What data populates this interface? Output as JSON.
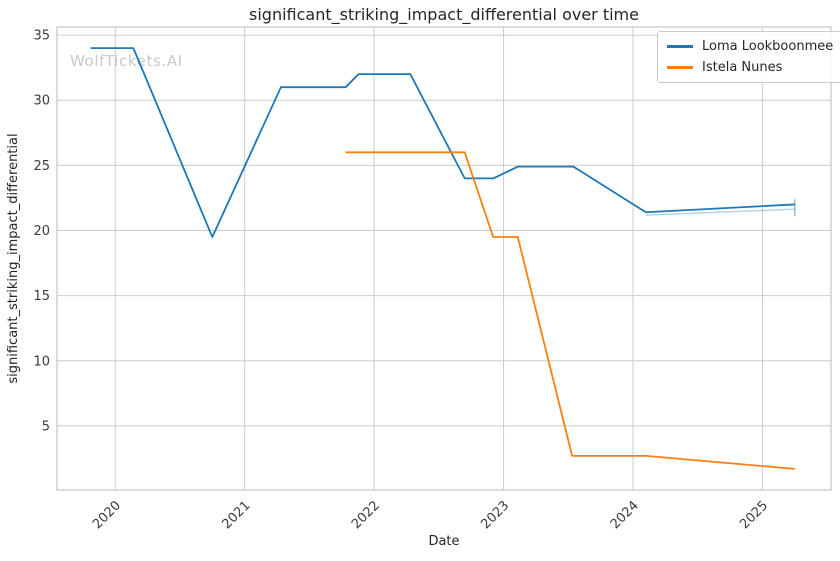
{
  "watermark": "WolfTickets.AI",
  "chart_data": {
    "type": "line",
    "title": "significant_striking_impact_differential over time",
    "xlabel": "Date",
    "ylabel": "significant_striking_impact_differential",
    "xlim": [
      2019.55,
      2025.53
    ],
    "ylim": [
      0.08,
      35.62
    ],
    "xticks": [
      2020,
      2021,
      2022,
      2023,
      2024,
      2025
    ],
    "xtick_labels": [
      "2020",
      "2021",
      "2022",
      "2023",
      "2024",
      "2025"
    ],
    "yticks": [
      5,
      10,
      15,
      20,
      25,
      30,
      35
    ],
    "ytick_labels": [
      "5",
      "10",
      "15",
      "20",
      "25",
      "30",
      "35"
    ],
    "grid": true,
    "legend_position": "upper right",
    "colors": {
      "grid": "#cccccc",
      "spine": "#c4c4c4",
      "text": "#262626",
      "tick_text": "#3b3b3b"
    },
    "series": [
      {
        "name": "Loma Lookboonmee",
        "color": "#1f77b4",
        "points": [
          [
            2019.81,
            34.0
          ],
          [
            2020.14,
            34.0
          ],
          [
            2020.75,
            19.5
          ],
          [
            2021.28,
            31.0
          ],
          [
            2021.78,
            31.0
          ],
          [
            2021.88,
            32.0
          ],
          [
            2022.28,
            32.0
          ],
          [
            2022.7,
            24.0
          ],
          [
            2022.92,
            24.0
          ],
          [
            2023.11,
            24.9
          ],
          [
            2023.54,
            24.9
          ],
          [
            2024.1,
            21.4
          ],
          [
            2025.25,
            22.0
          ]
        ],
        "end_cap": {
          "x": 2025.25,
          "y_low": 21.1,
          "y_high": 22.4
        },
        "ghost_segment": [
          [
            2024.1,
            21.3
          ],
          [
            2025.25,
            21.75
          ]
        ]
      },
      {
        "name": "Istela Nunes",
        "color": "#ff7f0e",
        "points": [
          [
            2021.78,
            26.0
          ],
          [
            2022.7,
            26.0
          ],
          [
            2022.92,
            19.5
          ],
          [
            2023.11,
            19.5
          ],
          [
            2023.53,
            2.7
          ],
          [
            2024.1,
            2.7
          ],
          [
            2025.25,
            1.7
          ]
        ]
      }
    ]
  }
}
